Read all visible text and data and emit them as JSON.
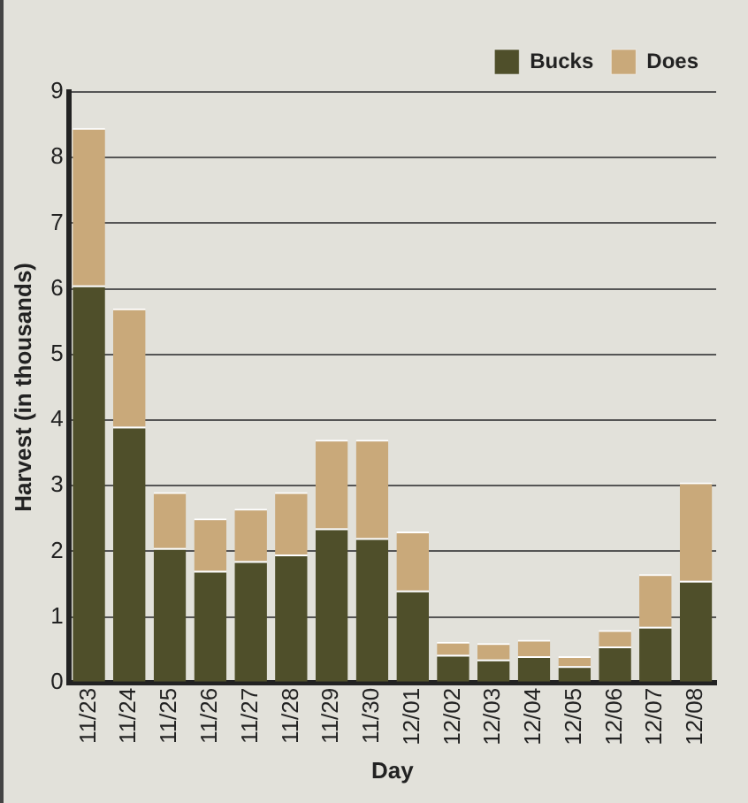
{
  "chart_data": {
    "type": "bar",
    "xlabel": "Day",
    "ylabel": "Harvest (in thousands)",
    "categories": [
      "11/23",
      "11/24",
      "11/25",
      "11/26",
      "11/27",
      "11/28",
      "11/29",
      "11/30",
      "12/01",
      "12/02",
      "12/03",
      "12/04",
      "12/05",
      "12/06",
      "12/07",
      "12/08"
    ],
    "series": [
      {
        "name": "Bucks",
        "color": "#4f4f2a",
        "values": [
          6.05,
          3.9,
          2.05,
          1.7,
          1.85,
          1.95,
          2.35,
          2.2,
          1.4,
          0.42,
          0.35,
          0.4,
          0.25,
          0.55,
          0.85,
          1.55
        ]
      },
      {
        "name": "Does",
        "color": "#c9a97a",
        "values": [
          2.4,
          1.8,
          0.85,
          0.8,
          0.8,
          0.95,
          1.35,
          1.5,
          0.9,
          0.2,
          0.25,
          0.25,
          0.15,
          0.25,
          0.8,
          1.5
        ]
      }
    ],
    "stacked": true,
    "ylim": [
      0,
      9
    ],
    "yticks": [
      0,
      1,
      2,
      3,
      4,
      5,
      6,
      7,
      8,
      9
    ],
    "grid": "y",
    "legend": "top right"
  }
}
